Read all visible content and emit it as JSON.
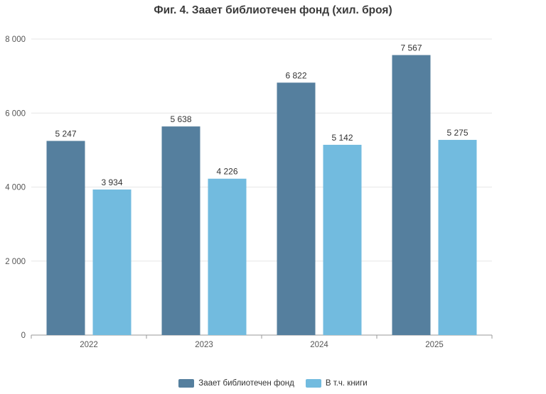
{
  "chart_data": {
    "type": "bar",
    "title": "Фиг. 4. Заает библиотечен фонд (хил. броя)",
    "categories": [
      "2022",
      "2023",
      "2024",
      "2025"
    ],
    "series": [
      {
        "name": "Заает библиотечен фонд",
        "values": [
          5247,
          5638,
          6822,
          7567
        ],
        "color": "#557f9e"
      },
      {
        "name": "В т.ч. книги",
        "values": [
          3934,
          4226,
          5142,
          5275
        ],
        "color": "#72bbdf"
      }
    ],
    "value_labels": [
      [
        "5 247",
        "5 638",
        "6 822",
        "7 567"
      ],
      [
        "3 934",
        "4 226",
        "5 142",
        "5 275"
      ]
    ],
    "ylim": [
      0,
      8000
    ],
    "yticks": [
      0,
      2000,
      4000,
      6000,
      8000
    ],
    "ytick_labels": [
      "0",
      "2 000",
      "4 000",
      "6 000",
      "8 000"
    ],
    "grid": true,
    "legend_position": "bottom"
  }
}
